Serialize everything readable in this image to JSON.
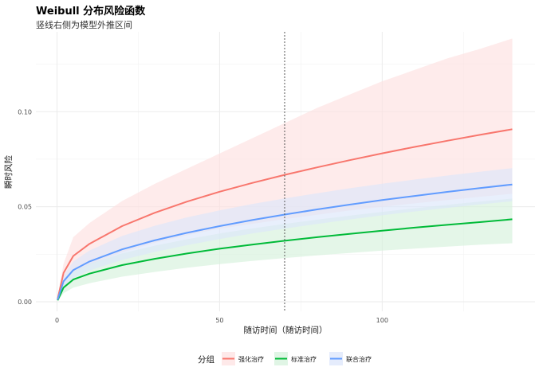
{
  "title": "Weibull 分布风险函数",
  "subtitle": "竖线右侧为模型外推区间",
  "chart_data": {
    "type": "line",
    "title": "Weibull 分布风险函数",
    "subtitle": "竖线右侧为模型外推区间",
    "xlabel": "随访时间（随访时间）",
    "ylabel": "瞬时风险",
    "xlim": [
      -6.5,
      147
    ],
    "ylim": [
      -0.005,
      0.142
    ],
    "x_ticks": [
      0,
      50,
      100
    ],
    "x_tick_labels": [
      "0",
      "50",
      "100"
    ],
    "y_ticks": [
      0,
      0.05,
      0.1
    ],
    "y_tick_labels": [
      "0.00",
      "0.05",
      "0.10"
    ],
    "x_minor": [
      25,
      75,
      125
    ],
    "y_minor": [
      0.025,
      0.075,
      0.125
    ],
    "grid": true,
    "vline": 70,
    "x": [
      0.2,
      2,
      5,
      10,
      20,
      30,
      40,
      50,
      60,
      70,
      80,
      90,
      100,
      110,
      120,
      130,
      140
    ],
    "legend_title": "分组",
    "legend_position": "bottom",
    "series": [
      {
        "name": "强化治疗",
        "color": "#F8766D",
        "fill": "#FDE1E1",
        "values": [
          0.0015,
          0.0152,
          0.0241,
          0.0305,
          0.0398,
          0.0468,
          0.0527,
          0.0579,
          0.0625,
          0.0668,
          0.0707,
          0.0745,
          0.0781,
          0.0815,
          0.0847,
          0.0878,
          0.0908
        ],
        "lower": [
          0.001,
          0.011,
          0.0155,
          0.0195,
          0.026,
          0.031,
          0.035,
          0.0385,
          0.041,
          0.0435,
          0.0458,
          0.048,
          0.05,
          0.0518,
          0.0535,
          0.0552,
          0.0568
        ],
        "upper": [
          0.002,
          0.02,
          0.034,
          0.0415,
          0.053,
          0.062,
          0.07,
          0.078,
          0.086,
          0.094,
          0.102,
          0.109,
          0.116,
          0.122,
          0.128,
          0.133,
          0.1385
        ]
      },
      {
        "name": "标准治疗",
        "color": "#00BA38",
        "fill": "#D5F1DC",
        "values": [
          0.0008,
          0.0075,
          0.0117,
          0.0148,
          0.0193,
          0.0226,
          0.0254,
          0.0279,
          0.0301,
          0.0321,
          0.034,
          0.0357,
          0.0374,
          0.039,
          0.0405,
          0.0419,
          0.0434
        ],
        "lower": [
          0.0005,
          0.0045,
          0.0075,
          0.0098,
          0.0132,
          0.0157,
          0.0179,
          0.0198,
          0.0215,
          0.023,
          0.0244,
          0.0257,
          0.0269,
          0.028,
          0.029,
          0.03,
          0.0308
        ],
        "upper": [
          0.0012,
          0.0105,
          0.016,
          0.02,
          0.0255,
          0.0295,
          0.0329,
          0.0359,
          0.0386,
          0.041,
          0.0432,
          0.0453,
          0.0473,
          0.0492,
          0.051,
          0.0527,
          0.0543
        ]
      },
      {
        "name": "联合治疗",
        "color": "#619CFF",
        "fill": "#DCE6FB",
        "values": [
          0.0011,
          0.0108,
          0.0167,
          0.0212,
          0.0276,
          0.0323,
          0.0363,
          0.0398,
          0.043,
          0.0459,
          0.0486,
          0.0511,
          0.0535,
          0.0557,
          0.0578,
          0.0598,
          0.0617
        ],
        "lower": [
          0.0008,
          0.008,
          0.0125,
          0.0165,
          0.022,
          0.0262,
          0.0298,
          0.033,
          0.0359,
          0.0385,
          0.041,
          0.0433,
          0.0455,
          0.0475,
          0.0494,
          0.0512,
          0.0529
        ],
        "upper": [
          0.0015,
          0.0138,
          0.0212,
          0.027,
          0.0346,
          0.04,
          0.0444,
          0.0481,
          0.0514,
          0.0544,
          0.0571,
          0.0597,
          0.0621,
          0.0643,
          0.0664,
          0.0684,
          0.0703
        ]
      }
    ]
  }
}
